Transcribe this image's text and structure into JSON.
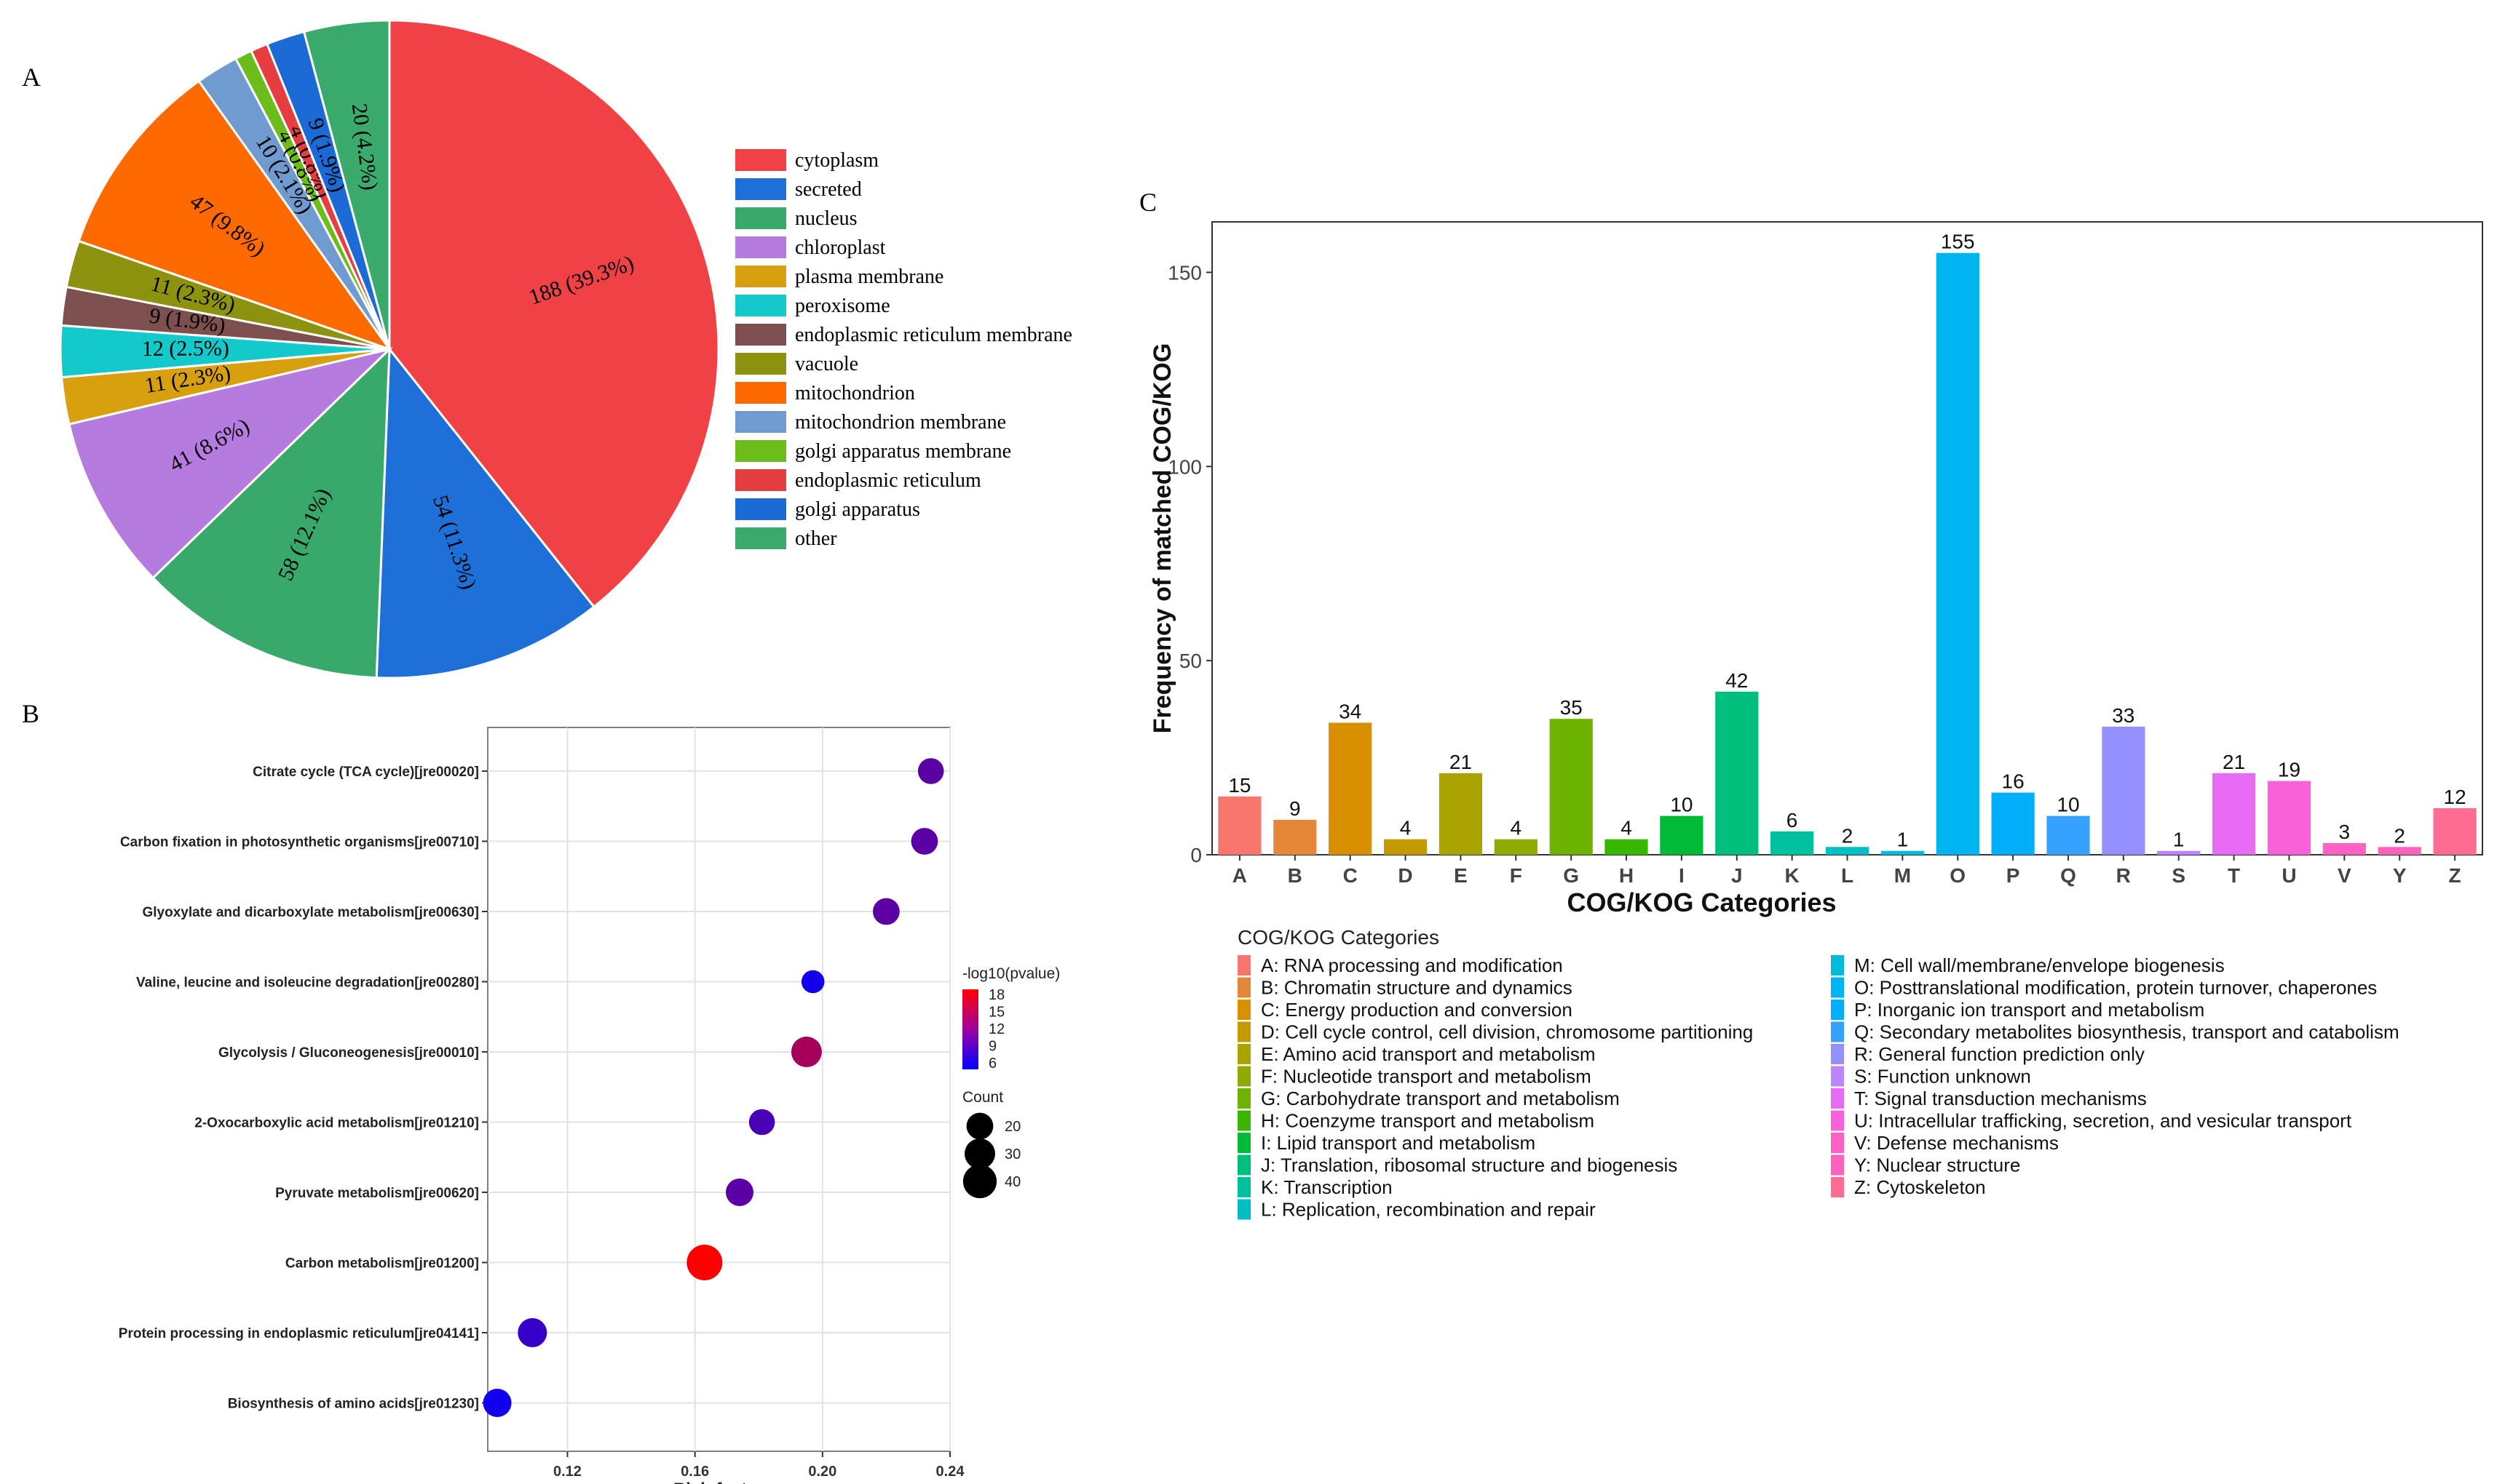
{
  "panel_labels": {
    "a": "A",
    "b": "B",
    "c": "C"
  },
  "chart_data": [
    {
      "id": "A",
      "type": "pie",
      "title": "",
      "start_angle_deg": 90,
      "direction": "clockwise",
      "categories": [
        "cytoplasm",
        "secreted",
        "nucleus",
        "chloroplast",
        "plasma membrane",
        "peroxisome",
        "endoplasmic reticulum membrane",
        "vacuole",
        "mitochondrion",
        "mitochondrion membrane",
        "golgi apparatus membrane",
        "endoplasmic reticulum",
        "golgi apparatus",
        "other"
      ],
      "values": [
        188,
        54,
        58,
        41,
        11,
        12,
        9,
        11,
        47,
        10,
        4,
        4,
        9,
        20
      ],
      "colors": [
        "#f04145",
        "#1f6fd9",
        "#39a96b",
        "#b57bdf",
        "#d89f0f",
        "#13c9c9",
        "#7d4f4f",
        "#8e930f",
        "#ff6a00",
        "#6f9bd1",
        "#6cbd1b",
        "#e63d40",
        "#1b6ad6",
        "#3aab6c"
      ],
      "slice_order": [
        0,
        1,
        2,
        3,
        4,
        5,
        6,
        7,
        8,
        9,
        10,
        11,
        12,
        13
      ],
      "slice_labels": [
        "188 (39.3%)",
        "54 (11.3%)",
        "58 (12.1%)",
        "41 (8.6%)",
        "11 (2.3%)",
        "12 (2.5%)",
        "9 (1.9%)",
        "11 (2.3%)",
        "47 (9.8%)",
        "10 (2.1%)",
        "4 (0.8%)",
        "4 (0.8%)",
        "9 (1.9%)",
        "20 (4.2%)"
      ],
      "legend": [
        "cytoplasm",
        "secreted",
        "nucleus",
        "chloroplast",
        "plasma membrane",
        "peroxisome",
        "endoplasmic reticulum membrane",
        "vacuole",
        "mitochondrion",
        "mitochondrion membrane",
        "golgi apparatus membrane",
        "endoplasmic reticulum",
        "golgi apparatus",
        "other"
      ],
      "legend_colors": [
        "#f04145",
        "#1f6fd9",
        "#39a96b",
        "#b57bdf",
        "#d89f0f",
        "#13c9c9",
        "#7d4f4f",
        "#8e930f",
        "#ff6a00",
        "#6f9bd1",
        "#6cbd1b",
        "#e63d40",
        "#1b6ad6",
        "#3aab6c"
      ]
    },
    {
      "id": "B",
      "type": "scatter",
      "title": "",
      "xlabel": "Rich factor",
      "ylabel": "",
      "xlim": [
        0.095,
        0.24
      ],
      "xticks": [
        0.12,
        0.16,
        0.2,
        0.24
      ],
      "xtick_labels": [
        "0.12",
        "0.16",
        "0.20",
        "0.24"
      ],
      "categories": [
        "Citrate cycle (TCA cycle)[jre00020]",
        "Carbon fixation in photosynthetic organisms[jre00710]",
        "Glyoxylate and dicarboxylate metabolism[jre00630]",
        "Valine, leucine and isoleucine degradation[jre00280]",
        "Glycolysis / Gluconeogenesis[jre00010]",
        "2-Oxocarboxylic acid metabolism[jre01210]",
        "Pyruvate metabolism[jre00620]",
        "Carbon metabolism[jre01200]",
        "Protein processing in endoplasmic reticulum[jre04141]",
        "Biosynthesis of amino acids[jre01230]"
      ],
      "rich_factor": [
        0.234,
        0.232,
        0.22,
        0.197,
        0.195,
        0.181,
        0.174,
        0.163,
        0.109,
        0.098
      ],
      "count": [
        18,
        20,
        20,
        12,
        30,
        18,
        22,
        47,
        26,
        24
      ],
      "neg_log10_pvalue": [
        10,
        10,
        10,
        6,
        14,
        9,
        10,
        19,
        8,
        6
      ],
      "color_legend": {
        "title": "-log10(pvalue)",
        "ticks": [
          18,
          15,
          12,
          9,
          6
        ],
        "tick_labels": [
          "18",
          "15",
          "12",
          "9",
          "6"
        ],
        "low_color": "#0000ff",
        "high_color": "#ff0000",
        "range": [
          5,
          19
        ]
      },
      "size_legend": {
        "title": "Count",
        "values": [
          20,
          30,
          40
        ],
        "labels": [
          "20",
          "30",
          "40"
        ]
      }
    },
    {
      "id": "C",
      "type": "bar",
      "title": "",
      "xlabel": "COG/KOG Categories",
      "ylabel": "Frequency of matched COG/KOG",
      "ylim": [
        0,
        163
      ],
      "yticks": [
        0,
        50,
        100,
        150
      ],
      "ytick_labels": [
        "0",
        "50",
        "100",
        "150"
      ],
      "categories": [
        "A",
        "B",
        "C",
        "D",
        "E",
        "F",
        "G",
        "H",
        "I",
        "J",
        "K",
        "L",
        "M",
        "O",
        "P",
        "Q",
        "R",
        "S",
        "T",
        "U",
        "V",
        "Y",
        "Z"
      ],
      "values": [
        15,
        9,
        34,
        4,
        21,
        4,
        35,
        4,
        10,
        42,
        6,
        2,
        1,
        155,
        16,
        10,
        33,
        1,
        21,
        19,
        3,
        2,
        12
      ],
      "value_labels": [
        "15",
        "9",
        "34",
        "4",
        "21",
        "4",
        "35",
        "4",
        "10",
        "42",
        "6",
        "2",
        "1",
        "155",
        "16",
        "10",
        "33",
        "1",
        "21",
        "19",
        "3",
        "2",
        "12"
      ],
      "colors": [
        "#f8766d",
        "#e58739",
        "#d89000",
        "#c49a00",
        "#a9a400",
        "#8eab00",
        "#6db300",
        "#39b600",
        "#00ba38",
        "#00bf7d",
        "#00c19f",
        "#00bfc4",
        "#00bbda",
        "#00b4ef",
        "#00aefa",
        "#35a2ff",
        "#9590ff",
        "#bc84ff",
        "#e76bf3",
        "#fa62db",
        "#ff61c3",
        "#ff62bc",
        "#ff6c91"
      ],
      "legend_title": "COG/KOG Categories",
      "legend": [
        "A: RNA processing and modification",
        "B: Chromatin structure and dynamics",
        "C: Energy production and conversion",
        "D: Cell cycle control, cell division, chromosome partitioning",
        "E: Amino acid transport and metabolism",
        "F: Nucleotide transport and metabolism",
        "G: Carbohydrate transport and metabolism",
        "H: Coenzyme transport and metabolism",
        "I: Lipid transport and metabolism",
        "J: Translation, ribosomal structure and biogenesis",
        "K: Transcription",
        "L: Replication, recombination and repair",
        "M: Cell wall/membrane/envelope biogenesis",
        "O: Posttranslational modification, protein turnover, chaperones",
        "P: Inorganic ion transport and metabolism",
        "Q: Secondary metabolites biosynthesis, transport and catabolism",
        "R: General function prediction only",
        "S: Function unknown",
        "T: Signal transduction mechanisms",
        "U: Intracellular trafficking, secretion, and vesicular transport",
        "V: Defense mechanisms",
        "Y: Nuclear structure",
        "Z: Cytoskeleton"
      ]
    }
  ]
}
